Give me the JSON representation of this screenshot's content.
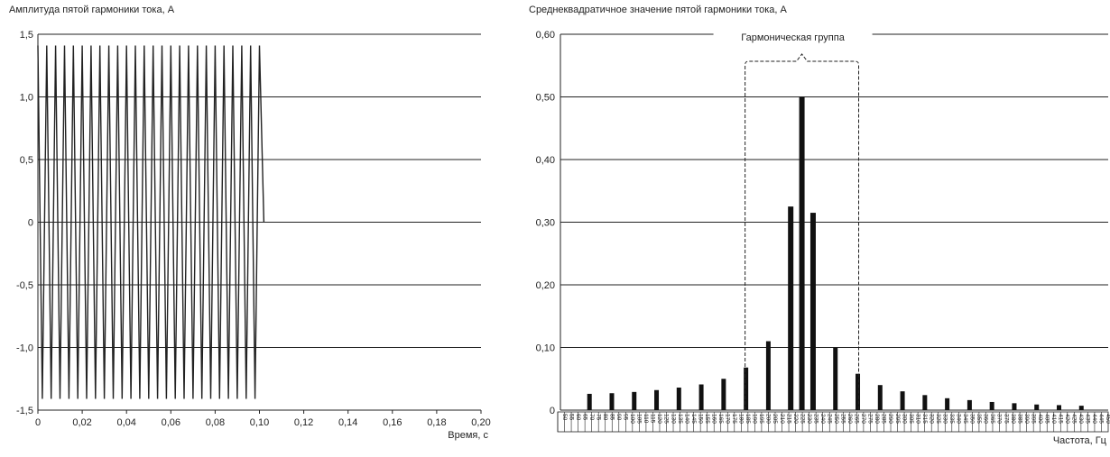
{
  "chart_data": [
    {
      "type": "line",
      "title": "Амплитуда пятой гармоники тока, А",
      "xlabel": "Время, с",
      "ylabel": "",
      "xlim": [
        0,
        0.2
      ],
      "ylim": [
        -1.5,
        1.5
      ],
      "grid": "horizontal",
      "x_ticks": [
        "0",
        "0,02",
        "0,04",
        "0,06",
        "0,08",
        "0,10",
        "0,12",
        "0,14",
        "0,16",
        "0,18",
        "0,20"
      ],
      "y_ticks": [
        "1,5",
        "1,0",
        "0,5",
        "0",
        "-0,5",
        "-1,0",
        "-1,5"
      ],
      "series": [
        {
          "frequency_hz": 250,
          "amplitude": 1.41,
          "duration_s": 0.1
        }
      ]
    },
    {
      "type": "bar",
      "title": "Среднеквадратичное значение пятой гармоники тока, А",
      "xlabel": "Частота, Гц",
      "ylabel": "",
      "ylim": [
        0,
        0.6
      ],
      "grid": "horizontal",
      "y_ticks": [
        "0,60",
        "0,50",
        "0,40",
        "0,30",
        "0,20",
        "0,10",
        "0"
      ],
      "annotation": "Гармоническая группа",
      "harmonic_group_range": [
        235,
        265
      ],
      "categories": [
        "50",
        "55",
        "60",
        "65",
        "70",
        "75",
        "80",
        "85",
        "90",
        "95",
        "100",
        "105",
        "110",
        "115",
        "120",
        "125",
        "130",
        "135",
        "140",
        "145",
        "150",
        "155",
        "160",
        "165",
        "170",
        "175",
        "180",
        "185",
        "190",
        "195",
        "200",
        "205",
        "210",
        "215",
        "220",
        "225",
        "230",
        "235",
        "240",
        "245",
        "250",
        "255",
        "260",
        "265",
        "270",
        "275",
        "280",
        "285",
        "290",
        "295",
        "300",
        "305",
        "310",
        "315",
        "320",
        "325",
        "330",
        "335",
        "340",
        "345",
        "350",
        "355",
        "360",
        "365",
        "370",
        "375",
        "380",
        "385",
        "390",
        "395",
        "400",
        "405",
        "410",
        "415",
        "420",
        "425",
        "430",
        "435",
        "440",
        "445",
        "450"
      ],
      "bars": [
        {
          "x": 60,
          "value": 0.026
        },
        {
          "x": 70,
          "value": 0.027
        },
        {
          "x": 80,
          "value": 0.029
        },
        {
          "x": 90,
          "value": 0.032
        },
        {
          "x": 100,
          "value": 0.036
        },
        {
          "x": 110,
          "value": 0.041
        },
        {
          "x": 120,
          "value": 0.05
        },
        {
          "x": 130,
          "value": 0.068
        },
        {
          "x": 140,
          "value": 0.11
        },
        {
          "x": 150,
          "value": 0.325
        },
        {
          "x": 155,
          "value": 0.5
        },
        {
          "x": 160,
          "value": 0.315
        },
        {
          "x": 170,
          "value": 0.1
        },
        {
          "x": 180,
          "value": 0.058
        },
        {
          "x": 190,
          "value": 0.04
        },
        {
          "x": 200,
          "value": 0.03
        },
        {
          "x": 210,
          "value": 0.024
        },
        {
          "x": 220,
          "value": 0.019
        },
        {
          "x": 230,
          "value": 0.016
        },
        {
          "x": 240,
          "value": 0.013
        },
        {
          "x": 250,
          "value": 0.011
        },
        {
          "x": 260,
          "value": 0.009
        },
        {
          "x": 270,
          "value": 0.008
        },
        {
          "x": 280,
          "value": 0.007
        }
      ]
    }
  ]
}
